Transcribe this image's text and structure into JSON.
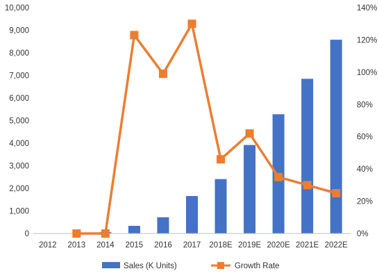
{
  "chart_data": {
    "type": "bar",
    "categories": [
      "2012",
      "2013",
      "2014",
      "2015",
      "2016",
      "2017",
      "2018E",
      "2019E",
      "2020E",
      "2021E",
      "2022E"
    ],
    "series": [
      {
        "name": "Sales (K Units)",
        "type": "bar",
        "axis": "left",
        "color": "#4472C4",
        "values": [
          0,
          0,
          60,
          340,
          720,
          1660,
          2410,
          3920,
          5280,
          6850,
          8580
        ]
      },
      {
        "name": "Growth Rate",
        "type": "line",
        "axis": "right",
        "color": "#ED7D31",
        "unit": "%",
        "values": [
          null,
          0,
          0,
          123,
          99,
          130,
          46,
          62,
          35,
          30,
          25
        ]
      }
    ],
    "y_left": {
      "min": 0,
      "max": 10000,
      "step": 1000,
      "tick_labels": [
        "0",
        "1,000",
        "2,000",
        "3,000",
        "4,000",
        "5,000",
        "6,000",
        "7,000",
        "8,000",
        "9,000",
        "10,000"
      ]
    },
    "y_right": {
      "min": 0,
      "max": 140,
      "step": 20,
      "tick_labels": [
        "0%",
        "20%",
        "40%",
        "60%",
        "80%",
        "100%",
        "120%",
        "140%"
      ]
    },
    "grid": false,
    "legend": {
      "position": "bottom",
      "entries": [
        "Sales (K Units)",
        "Growth Rate"
      ]
    },
    "title": "",
    "xlabel": "",
    "ylabel": ""
  }
}
